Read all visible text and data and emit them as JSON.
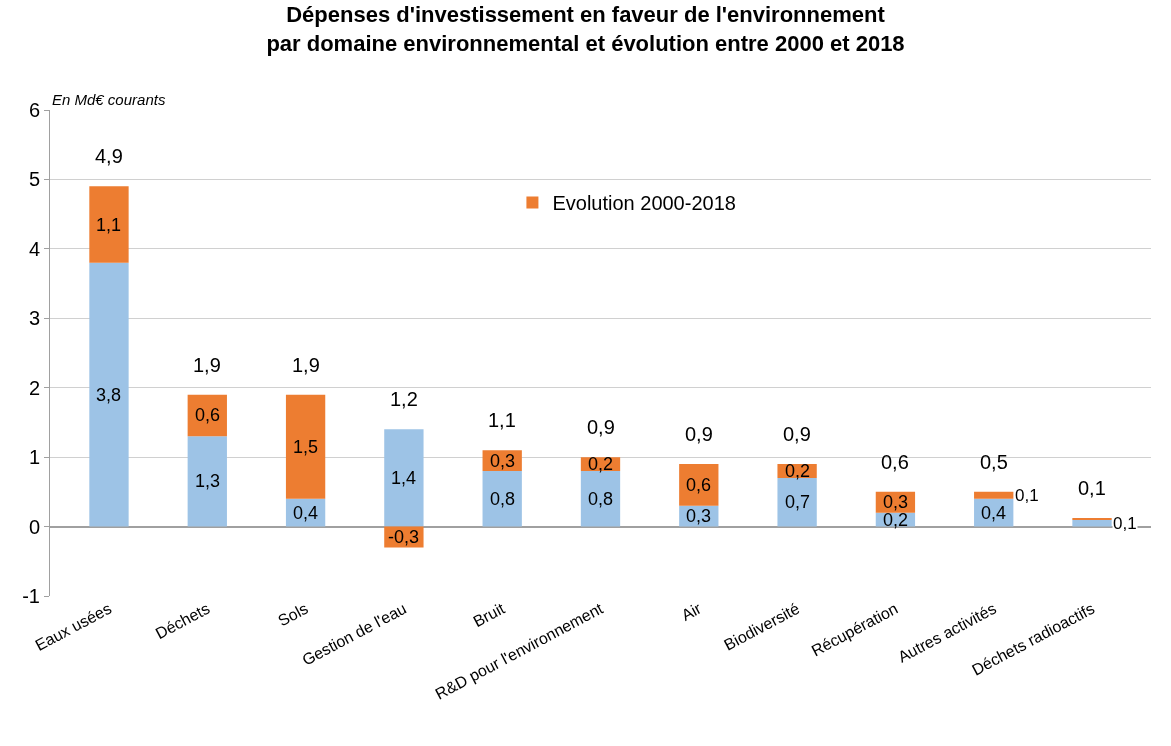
{
  "chart_data": {
    "type": "bar",
    "title": "Dépenses d'investissement en faveur de l'environnement\npar domaine environnemental et évolution entre 2000 et 2018",
    "ylabel": "En Md€ courants",
    "categories": [
      "Eaux usées",
      "Déchets",
      "Sols",
      "Gestion de l'eau",
      "Bruit",
      "R&D pour l'environnement",
      "Air",
      "Biodiversité",
      "Récupération",
      "Autres activités",
      "Déchets radioactifs"
    ],
    "stacked": true,
    "series": [
      {
        "color": "#9dc3e6",
        "values": [
          3.8,
          1.3,
          0.4,
          1.4,
          0.8,
          0.8,
          0.3,
          0.7,
          0.2,
          0.4,
          0.1
        ],
        "value_labels": [
          "3,8",
          "1,3",
          "0,4",
          "1,4",
          "0,8",
          "0,8",
          "0,3",
          "0,7",
          "0,2",
          "0,4",
          "0,1"
        ]
      },
      {
        "name": "Evolution 2000-2018",
        "color": "#ed7d31",
        "values": [
          1.1,
          0.6,
          1.5,
          -0.3,
          0.3,
          0.2,
          0.6,
          0.2,
          0.3,
          0.1,
          0.02
        ],
        "value_labels": [
          "1,1",
          "0,6",
          "1,5",
          "-0,3",
          "0,3",
          "0,2",
          "0,6",
          "0,2",
          "0,3",
          "0,1",
          null
        ]
      }
    ],
    "totals": [
      "4,9",
      "1,9",
      "1,9",
      "1,2",
      "1,1",
      "0,9",
      "0,9",
      "0,9",
      "0,6",
      "0,5",
      "0,1"
    ],
    "ylim": [
      -1,
      6
    ],
    "yticks": [
      -1,
      0,
      1,
      2,
      3,
      4,
      5,
      6
    ],
    "grid": "y",
    "legend": "top"
  }
}
